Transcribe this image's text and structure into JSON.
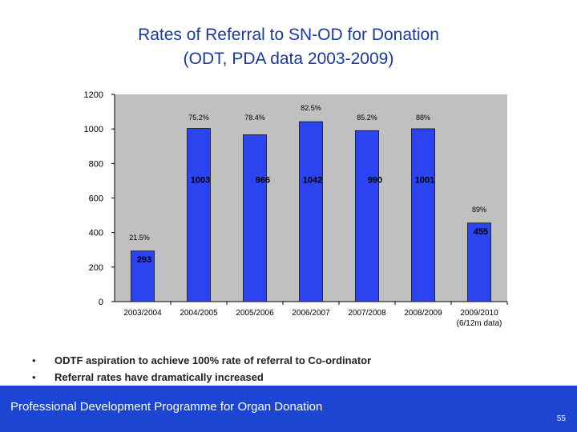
{
  "slide": {
    "title_line1": "Rates of Referral to SN-OD for Donation",
    "title_line2": "(ODT, PDA data 2003-2009)",
    "bullets": [
      "ODTF aspiration to achieve 100% rate of referral to Co-ordinator",
      "Referral rates have dramatically increased"
    ],
    "bullet_symbol": "•",
    "footer_text": "Professional Development Programme for Organ Donation",
    "page_number": "55"
  },
  "colors": {
    "bar": "#2b44f0",
    "plot_bg": "#c0c0c0",
    "title": "#1a3a9a",
    "footer_bg": "#1c46d2"
  },
  "chart_data": {
    "type": "bar",
    "title": "",
    "xlabel": "",
    "ylabel": "",
    "ylim": [
      0,
      1200
    ],
    "yticks": [
      0,
      200,
      400,
      600,
      800,
      1000,
      1200
    ],
    "categories": [
      "2003/2004",
      "2004/2005",
      "2005/2006",
      "2006/2007",
      "2007/2008",
      "2008/2009",
      "2009/2010"
    ],
    "category_notes": [
      "",
      "",
      "",
      "",
      "",
      "",
      "(6/12m data)"
    ],
    "values": [
      293,
      1003,
      966,
      1042,
      990,
      1001,
      455
    ],
    "percent_labels": [
      "21.5%",
      "75.2%",
      "78.4%",
      "82.5%",
      "85.2%",
      "88%",
      "89%"
    ],
    "grid": false,
    "legend": "none"
  }
}
